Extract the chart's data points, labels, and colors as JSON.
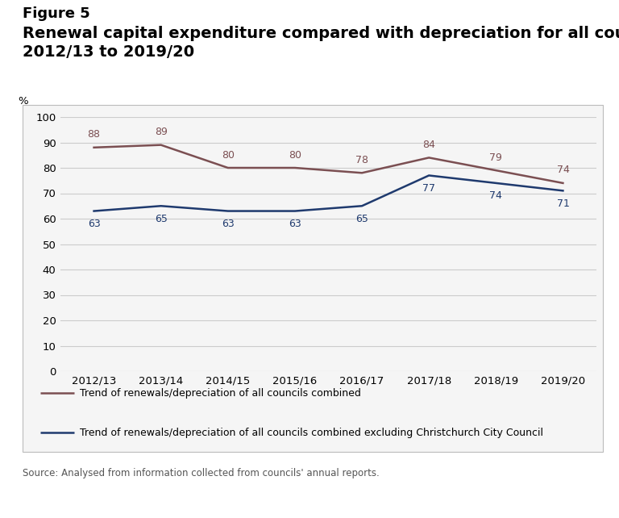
{
  "figure_label": "Figure 5",
  "title_line1": "Renewal capital expenditure compared with depreciation for all councils,",
  "title_line2": "2012/13 to 2019/20",
  "source_text": "Source: Analysed from information collected from councils' annual reports.",
  "x_labels": [
    "2012/13",
    "2013/14",
    "2014/15",
    "2015/16",
    "2016/17",
    "2017/18",
    "2018/19",
    "2019/20"
  ],
  "x_values": [
    0,
    1,
    2,
    3,
    4,
    5,
    6,
    7
  ],
  "series1_values": [
    88,
    89,
    80,
    80,
    78,
    84,
    79,
    74
  ],
  "series1_color": "#7B4F52",
  "series1_label": "Trend of renewals/depreciation of all councils combined",
  "series2_values": [
    63,
    65,
    63,
    63,
    65,
    77,
    74,
    71
  ],
  "series2_color": "#1F3A6E",
  "series2_label": "Trend of renewals/depreciation of all councils combined excluding Christchurch City Council",
  "ylim": [
    0,
    100
  ],
  "yticks": [
    0,
    10,
    20,
    30,
    40,
    50,
    60,
    70,
    80,
    90,
    100
  ],
  "ylabel": "%",
  "grid_color": "#CCCCCC",
  "plot_facecolor": "#F5F5F5",
  "outer_box_facecolor": "#F5F5F5",
  "background_color": "#FFFFFF",
  "line_width": 1.8,
  "title_fontsize": 14,
  "figure_label_fontsize": 13,
  "tick_fontsize": 9.5,
  "annotation_fontsize": 9,
  "legend_fontsize": 9,
  "source_fontsize": 8.5,
  "box_edge_color": "#BBBBBB",
  "ann1_offsets_y": [
    3,
    3,
    3,
    3,
    3,
    3,
    3,
    3
  ],
  "ann2_offsets_y": [
    -3,
    -3,
    -3,
    -3,
    -3,
    -3,
    -3,
    -3
  ]
}
